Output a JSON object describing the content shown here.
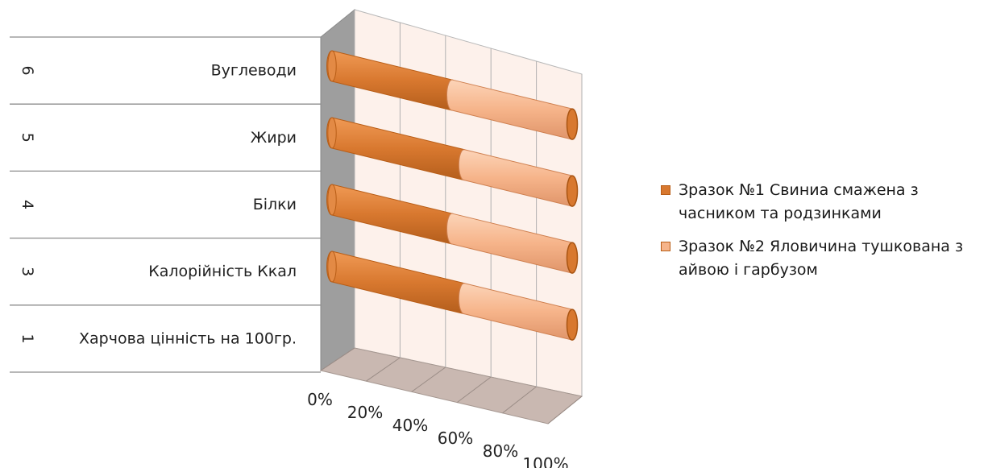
{
  "chart_data": {
    "type": "bar",
    "orientation": "horizontal",
    "stacked": "percent",
    "three_d": true,
    "categories": [
      {
        "num": "1",
        "label": "Харчова цінність на 100гр."
      },
      {
        "num": "3",
        "label": "Калорійність Ккал"
      },
      {
        "num": "4",
        "label": "Білки"
      },
      {
        "num": "5",
        "label": "Жири"
      },
      {
        "num": "6",
        "label": "Вуглеводи"
      }
    ],
    "series": [
      {
        "name": "Зразок №1 Свиниа смажена з часником та родзинками",
        "color": "#d8782f",
        "values": [
          null,
          55,
          50,
          55,
          50
        ]
      },
      {
        "name": "Зразок №2 Яловичина тушкована з айвою і гарбузом",
        "color": "#f6b48a",
        "values": [
          null,
          45,
          50,
          45,
          50
        ]
      }
    ],
    "x_ticks": [
      "0%",
      "20%",
      "40%",
      "60%",
      "80%",
      "100%"
    ],
    "xlim": [
      0,
      100
    ],
    "grid": true,
    "legend_position": "right"
  }
}
